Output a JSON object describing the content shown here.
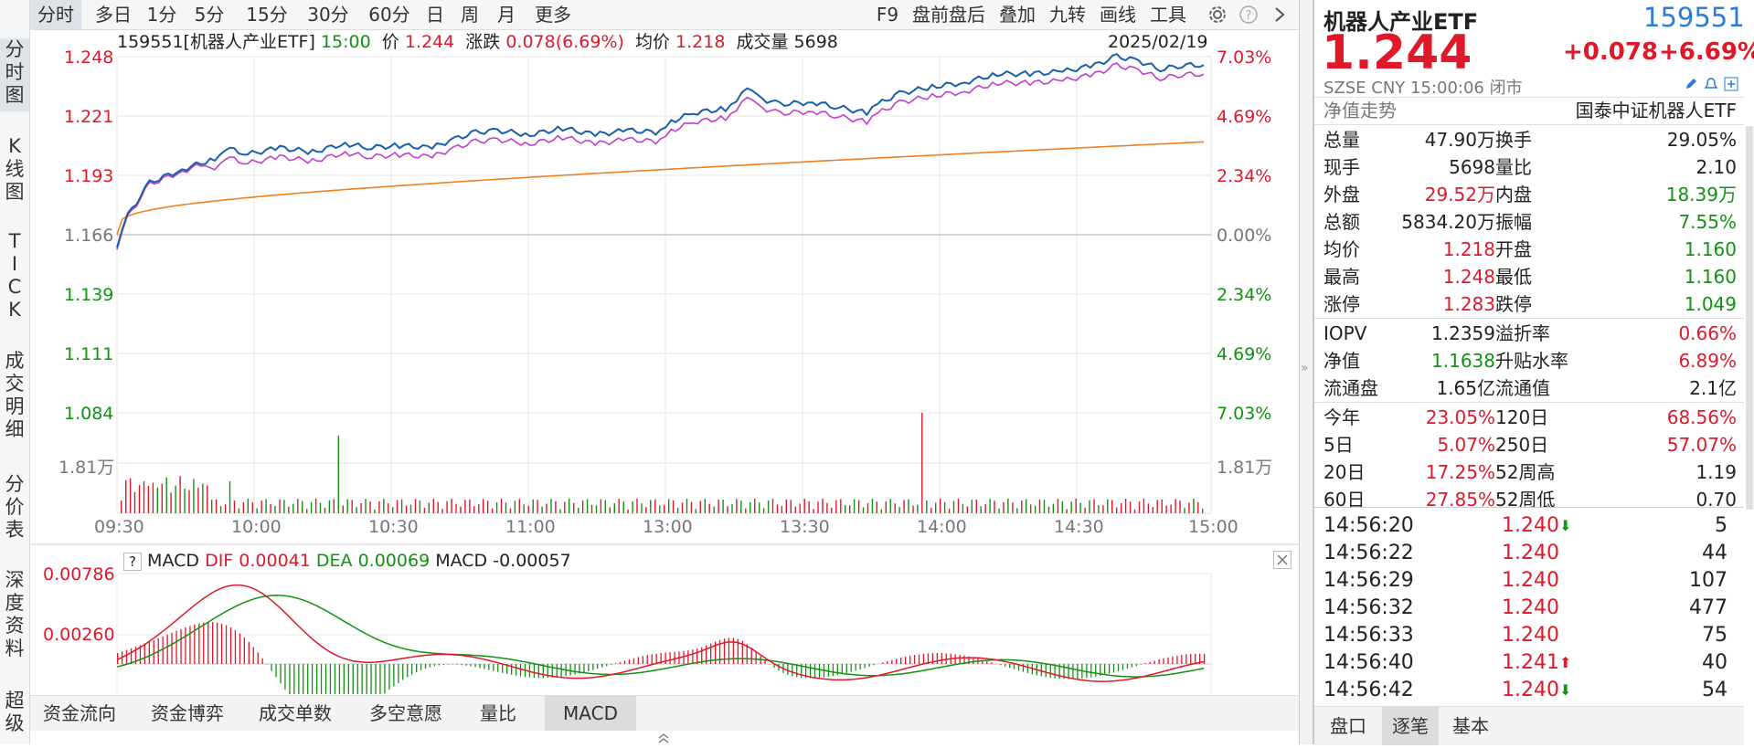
{
  "left_tabs": [
    "分时图",
    "K线图",
    "TICK",
    "成交明细",
    "分价表",
    "深度资料",
    "超级"
  ],
  "toolbar": {
    "left": [
      "分时",
      "多日",
      "1分",
      "5分",
      "15分",
      "30分",
      "60分",
      "日",
      "周",
      "月",
      "更多"
    ],
    "right": [
      "F9",
      "盘前盘后",
      "叠加",
      "九转",
      "画线",
      "工具"
    ]
  },
  "quote_line": {
    "code_name": "159551[机器人产业ETF]",
    "time": "15:00",
    "price_label": "价",
    "price": "1.244",
    "change_label": "涨跌",
    "change": "0.078(6.69%)",
    "avg_label": "均价",
    "avg": "1.218",
    "vol_label": "成交量",
    "vol": "5698",
    "date": "2025/02/19"
  },
  "y_left": [
    "1.248",
    "1.221",
    "1.193",
    "1.166",
    "1.139",
    "1.111",
    "1.084"
  ],
  "y_right": [
    "7.03%",
    "4.69%",
    "2.34%",
    "0.00%",
    "2.34%",
    "4.69%",
    "7.03%"
  ],
  "vol_label": "1.81万",
  "x_labels": [
    "09:30",
    "10:00",
    "10:30",
    "11:00",
    "13:00",
    "13:30",
    "14:00",
    "14:30",
    "15:00"
  ],
  "macd_header": {
    "q": "?",
    "name": "MACD",
    "dif_label": "DIF",
    "dif": "0.00041",
    "dea_label": "DEA",
    "dea": "0.00069",
    "macd_label": "MACD",
    "macd": "-0.00057"
  },
  "macd_y": [
    "0.00786",
    "0.00260"
  ],
  "bottom_tabs": [
    "资金流向",
    "资金博弈",
    "成交单数",
    "多空意愿",
    "量比",
    "MACD"
  ],
  "right": {
    "name": "机器人产业ETF",
    "code": "159551",
    "price": "1.244",
    "change": "+0.078",
    "pct": "+6.69%",
    "market_line": "SZSE  CNY  15:00:06  闭市",
    "nav_trend": "净值走势",
    "index_name": "国泰中证机器人ETF",
    "stats": [
      [
        "总量",
        "47.90万",
        "换手",
        "29.05%"
      ],
      [
        "现手",
        "5698",
        "量比",
        "2.10"
      ],
      [
        "外盘",
        "29.52万",
        "内盘",
        "18.39万"
      ],
      [
        "总额",
        "5834.20万",
        "振幅",
        "7.55%"
      ],
      [
        "均价",
        "1.218",
        "开盘",
        "1.160"
      ],
      [
        "最高",
        "1.248",
        "最低",
        "1.160"
      ],
      [
        "涨停",
        "1.283",
        "跌停",
        "1.049"
      ]
    ],
    "stats2": [
      [
        "IOPV",
        "1.2359",
        "溢折率",
        "0.66%"
      ],
      [
        "净值",
        "1.1638",
        "升贴水率",
        "6.89%"
      ],
      [
        "流通盘",
        "1.65亿",
        "流通值",
        "2.1亿"
      ]
    ],
    "perf": [
      [
        "今年",
        "23.05%",
        "120日",
        "68.56%"
      ],
      [
        "5日",
        "5.07%",
        "250日",
        "57.07%"
      ],
      [
        "20日",
        "17.25%",
        "52周高",
        "1.19"
      ],
      [
        "60日",
        "27.85%",
        "52周低",
        "0.70"
      ]
    ],
    "ticks": [
      [
        "14:56:20",
        "1.240",
        "down",
        "5"
      ],
      [
        "14:56:22",
        "1.240",
        "",
        "44"
      ],
      [
        "14:56:29",
        "1.240",
        "",
        "107"
      ],
      [
        "14:56:32",
        "1.240",
        "",
        "477"
      ],
      [
        "14:56:33",
        "1.240",
        "",
        "75"
      ],
      [
        "14:56:40",
        "1.241",
        "up",
        "40"
      ],
      [
        "14:56:42",
        "1.240",
        "down",
        "54"
      ]
    ],
    "bottom_tabs": [
      "盘口",
      "逐笔",
      "基本"
    ]
  },
  "colors": {
    "up": "#e0182a",
    "down": "#119211",
    "price_line": "#1a5fa8",
    "avg_line": "#c03fd0",
    "nav_line": "#f08020"
  }
}
